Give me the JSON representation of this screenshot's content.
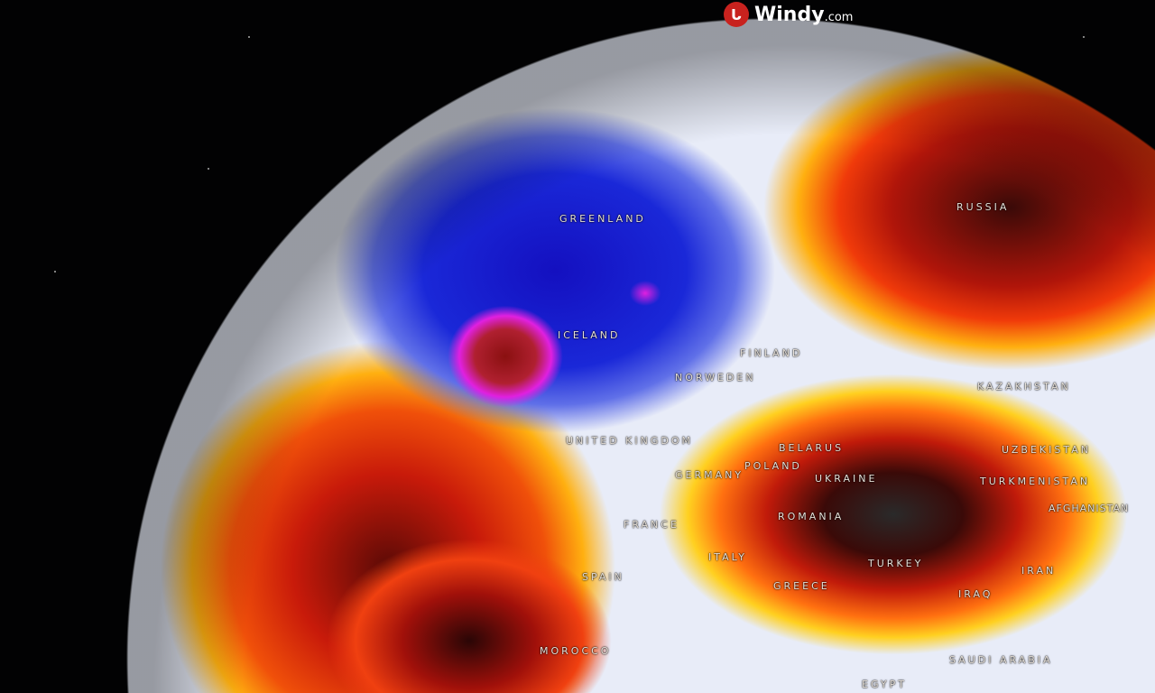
{
  "brand": {
    "name": "Windy",
    "suffix": ".com",
    "logo_color": "#c8221e"
  },
  "map": {
    "projection": "globe",
    "layer_colors": {
      "cold": "#1a1fd0",
      "low": "#e020e0",
      "neutral": "#e8ecf8",
      "warm": "#ffd21a",
      "hot": "#e01a0a",
      "extreme": "#2a2a2a"
    },
    "labels": [
      "GREENLAND",
      "RUSSIA",
      "ICELAND",
      "FINLAND",
      "NORWEDEN",
      "UNITED KINGDOM",
      "BELARUS",
      "POLAND",
      "GERMANY",
      "UKRAINE",
      "KAZAKHSTAN",
      "UZBEKISTAN",
      "TURKMENISTAN",
      "AFGHANISTAN",
      "ROMANIA",
      "FRANCE",
      "ITALY",
      "SPAIN",
      "GREECE",
      "TURKEY",
      "IRAN",
      "IRAQ",
      "MOROCCO",
      "SAUDI ARABIA",
      "EGYPT"
    ]
  }
}
